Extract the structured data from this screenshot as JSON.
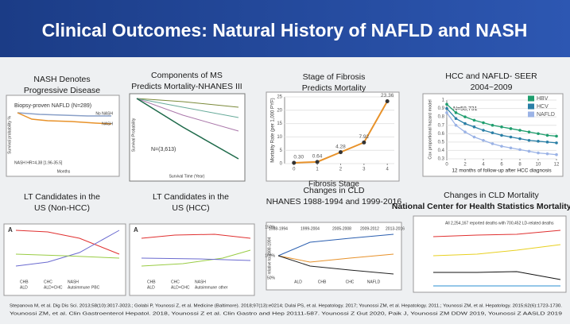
{
  "header": {
    "title": "Clinical Outcomes: Natural History of NAFLD and NASH"
  },
  "panels": [
    {
      "title": [
        "NASH Denotes",
        "Progressive Disease"
      ],
      "labels": [
        "Biopsy-proven NAFLD (N=289)",
        "No NASH",
        "NASH",
        "NASH HR=4,38 [1.96-35.5]",
        "Months",
        "Survival probability %"
      ]
    },
    {
      "title": [
        "Components of MS",
        "Predicts Mortality-NHANES III"
      ],
      "labels": [
        "N=(3,613)",
        "Survival Time (Year)",
        "Survival Probability"
      ]
    },
    {
      "title": [
        "Stage of Fibrosis",
        "Predicts Mortality"
      ],
      "labels": []
    },
    {
      "title": [
        "HCC and NAFLD- SEER",
        "2004~2009"
      ],
      "labels": [
        "N=58,731"
      ]
    },
    {
      "title": [
        "LT Candidates in the",
        "US (Non-HCC)"
      ],
      "labels": [
        "A",
        "CHB",
        "CHC",
        "NASH",
        "ALD",
        "ALD+CHC",
        "Autoimmune",
        "PBC"
      ]
    },
    {
      "title": [
        "LT Candidates in the",
        "US (HCC)"
      ],
      "labels": [
        "A",
        "CHB",
        "CHC",
        "NASH",
        "ALD",
        "ALD+CHC",
        "Autoimmune",
        "other"
      ]
    },
    {
      "title": [
        "Changes in CLD",
        "NHANES 1988-1994 and 1999-2016"
      ],
      "labels": [
        "150%",
        "100%",
        "50%",
        "1988-1994",
        "1999-2004",
        "2005-2008",
        "2009-2012",
        "2013-2016",
        "relative to 1988-1994",
        "ALD",
        "CHB",
        "CHC",
        "NAFLD"
      ]
    },
    {
      "title": [
        "Changes in CLD Mortality",
        "National Center for Health Statistics Mortality data"
      ],
      "labels": [
        "All 2,254,167 reported deaths with 700,452 LD-related deaths"
      ]
    }
  ],
  "fibrosis_chart": {
    "type": "line",
    "x_label": "Fibrosis Stage",
    "y_label": "Mortality Rate (per 1,000 PYF)",
    "x": [
      0,
      1,
      2,
      3,
      4
    ],
    "values": [
      0.3,
      0.64,
      4.28,
      7.92,
      23.36
    ],
    "value_labels": [
      "0.30",
      "0.64",
      "4.28",
      "7.92",
      "23.36"
    ],
    "color": "#e8922a",
    "xlim": [
      -0.4,
      4.3
    ],
    "xticks": [
      0,
      1,
      2,
      3,
      4
    ],
    "ylim": [
      0,
      25
    ],
    "yticks": [
      0,
      5,
      10,
      15,
      20,
      25
    ]
  },
  "hcc_chart": {
    "type": "line",
    "x_label": "12 months of follow-up after HCC diagnosis",
    "y_label": "Cox proportional hazard model",
    "x": [
      0,
      1,
      2,
      3,
      4,
      5,
      6,
      7,
      8,
      9,
      10,
      11,
      12
    ],
    "series": [
      {
        "name": "HBV",
        "color": "#1f9e6e",
        "values": [
          0.95,
          0.85,
          0.8,
          0.76,
          0.73,
          0.7,
          0.68,
          0.66,
          0.64,
          0.62,
          0.6,
          0.58,
          0.57
        ]
      },
      {
        "name": "HCV",
        "color": "#2a7fa6",
        "values": [
          0.9,
          0.78,
          0.72,
          0.68,
          0.64,
          0.61,
          0.58,
          0.56,
          0.54,
          0.52,
          0.51,
          0.5,
          0.49
        ]
      },
      {
        "name": "NAFLD",
        "color": "#9bb3e6",
        "values": [
          0.85,
          0.7,
          0.62,
          0.56,
          0.52,
          0.48,
          0.45,
          0.43,
          0.41,
          0.39,
          0.37,
          0.36,
          0.35
        ]
      }
    ],
    "xlim": [
      0,
      12
    ],
    "xticks": [
      0,
      2,
      4,
      6,
      8,
      10,
      12
    ],
    "ylim": [
      0.3,
      1
    ],
    "yticks": [
      0.3,
      0.4,
      0.5,
      0.6,
      0.7,
      0.8,
      0.9,
      1
    ],
    "legend": "top-right"
  },
  "citations": [
    "Stepanova M, et al. Dig Dis Sci. 2013;58(10):3017-3023.; Golabi P, Younossi Z, et al. Medicine (Baltimore). 2018;97(13):e0214; Dulai PS, et al. Hepatology. 2017; Younossi ZM, et al. Hepatology. 2011.; Younossi ZM, et al. Hepatology. 2015;62(6):1723-1730.",
    "Younossi ZM, et al. Clin Gastroenterol Hepatol. 2018, Younossi Z et al. Clin Gastro and Hep 20111-587. Younossi Z Gut 2020, Paik J, Younossi ZM DDW 2019, Younossi Z AASLD 2019"
  ]
}
